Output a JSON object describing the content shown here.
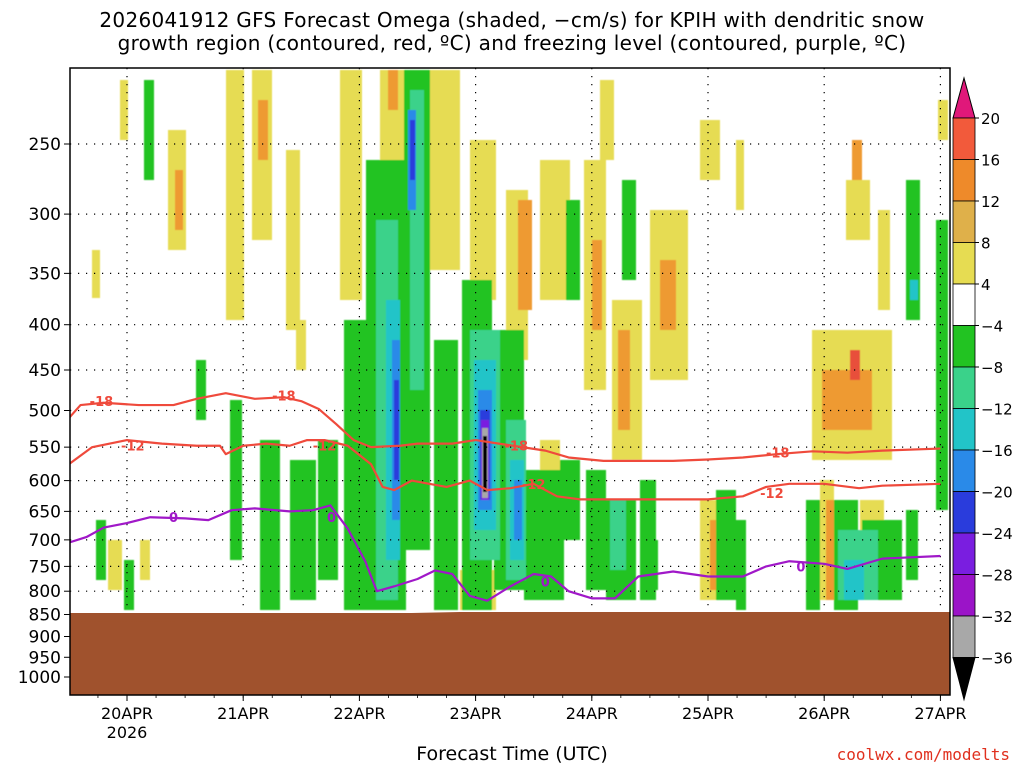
{
  "title": {
    "line1": "2026041912 GFS Forecast Omega (shaded, −cm/s) for KPIH with dendritic snow",
    "line2": "growth region (contoured, red, ºC) and freezing level (contoured, purple, ºC)"
  },
  "xlabel": "Forecast Time (UTC)",
  "credit": "coolwx.com/modelts",
  "chart_data": {
    "type": "heatmap",
    "title": "2026041912 GFS Forecast Omega (shaded, −cm/s) for KPIH with dendritic snow growth region (contoured, red, ºC) and freezing level (contoured, purple, ºC)",
    "xlabel": "Forecast Time (UTC)",
    "ylabel": "",
    "x_ticks": [
      "20APR",
      "21APR",
      "22APR",
      "23APR",
      "24APR",
      "25APR",
      "26APR",
      "27APR"
    ],
    "x_year_label": "2026",
    "x_range": [
      "2026-04-19T12",
      "2026-04-27T00"
    ],
    "y_ticks": [
      250,
      300,
      350,
      400,
      450,
      500,
      550,
      600,
      650,
      700,
      750,
      800,
      850,
      900,
      950,
      1000
    ],
    "y_range_hpa": [
      200,
      1050
    ],
    "y_scale": "log",
    "grid": true,
    "colorbar": {
      "labels": [
        "20",
        "16",
        "12",
        "8",
        "4",
        "−4",
        "−8",
        "−12",
        "−16",
        "−20",
        "−24",
        "−28",
        "−32",
        "−36"
      ],
      "colors": [
        "#ff2a3a",
        "#f25a3b",
        "#ee8a2a",
        "#dfb04a",
        "#e6dc52",
        "#ffffff",
        "#22c322",
        "#3ad28a",
        "#22c4c8",
        "#2a8ae8",
        "#2a3cdc",
        "#7a1ee0",
        "#9b14c8",
        "#a8a8a8",
        "#000000"
      ],
      "top_arrow_color": "#e0187a",
      "bottom_arrow_color": "#000000"
    },
    "ground_color": "#a0522d",
    "series": [
      {
        "name": "-18",
        "color": "#ef4a3c",
        "x_days": [
          0,
          0.1,
          0.3,
          0.6,
          0.9,
          1.1,
          1.35,
          1.6,
          1.85,
          2.0,
          2.15,
          2.3,
          2.45,
          2.6,
          2.85,
          3.0,
          3.3,
          3.5,
          3.7,
          3.9,
          4.1,
          4.3,
          4.6,
          4.9,
          5.2,
          5.5,
          5.8,
          6.1,
          6.4,
          6.7,
          7.0,
          7.5
        ],
        "y_hpa": [
          510,
          493,
          490,
          493,
          493,
          485,
          478,
          485,
          483,
          488,
          498,
          518,
          540,
          550,
          548,
          545,
          545,
          540,
          545,
          550,
          555,
          565,
          570,
          570,
          570,
          568,
          565,
          560,
          556,
          558,
          555,
          552
        ],
        "labels": [
          {
            "text": "-18",
            "x_days": 0.28,
            "y_hpa": 488
          },
          {
            "text": "-18",
            "x_days": 1.85,
            "y_hpa": 481
          },
          {
            "text": "-18",
            "x_days": 3.85,
            "y_hpa": 548
          },
          {
            "text": "-18",
            "x_days": 6.1,
            "y_hpa": 558
          }
        ]
      },
      {
        "name": "-12",
        "color": "#ef4a3c",
        "x_days": [
          0,
          0.2,
          0.5,
          0.8,
          1.1,
          1.3,
          1.35,
          1.5,
          1.7,
          1.9,
          2.05,
          2.2,
          2.4,
          2.6,
          2.7,
          2.8,
          2.95,
          3.1,
          3.25,
          3.45,
          3.6,
          3.8,
          4.0,
          4.2,
          4.4,
          4.6,
          4.9,
          5.2,
          5.5,
          5.8,
          6.0,
          6.2,
          6.5,
          6.8,
          7.0,
          7.5
        ],
        "y_hpa": [
          575,
          550,
          540,
          545,
          548,
          548,
          560,
          548,
          545,
          548,
          540,
          540,
          548,
          575,
          610,
          615,
          600,
          605,
          610,
          600,
          615,
          612,
          605,
          625,
          630,
          630,
          630,
          630,
          630,
          625,
          610,
          605,
          605,
          612,
          608,
          605
        ],
        "labels": [
          {
            "text": "-12",
            "x_days": 0.55,
            "y_hpa": 548
          },
          {
            "text": "-12",
            "x_days": 2.2,
            "y_hpa": 548
          },
          {
            "text": "-12",
            "x_days": 4.0,
            "y_hpa": 605
          },
          {
            "text": "-12",
            "x_days": 6.05,
            "y_hpa": 620
          }
        ]
      },
      {
        "name": "0",
        "color": "#a018c8",
        "x_days": [
          0,
          0.15,
          0.3,
          0.5,
          0.7,
          1.0,
          1.2,
          1.4,
          1.6,
          1.9,
          2.1,
          2.25,
          2.4,
          2.55,
          2.65,
          2.8,
          3.0,
          3.15,
          3.3,
          3.45,
          3.6,
          3.8,
          4.0,
          4.15,
          4.3,
          4.5,
          4.7,
          4.9,
          5.2,
          5.5,
          5.8,
          6.0,
          6.2,
          6.5,
          6.7,
          7.0,
          7.5
        ],
        "y_hpa": [
          705,
          695,
          678,
          670,
          660,
          662,
          665,
          648,
          645,
          650,
          648,
          640,
          680,
          740,
          800,
          790,
          775,
          758,
          765,
          810,
          820,
          790,
          765,
          770,
          800,
          815,
          815,
          770,
          760,
          770,
          770,
          750,
          740,
          745,
          755,
          735,
          730
        ],
        "labels": [
          {
            "text": "0",
            "x_days": 0.9,
            "y_hpa": 660
          },
          {
            "text": "0",
            "x_days": 2.26,
            "y_hpa": 660
          },
          {
            "text": "0",
            "x_days": 4.1,
            "y_hpa": 780
          },
          {
            "text": "0",
            "x_days": 6.3,
            "y_hpa": 750
          }
        ]
      }
    ]
  }
}
